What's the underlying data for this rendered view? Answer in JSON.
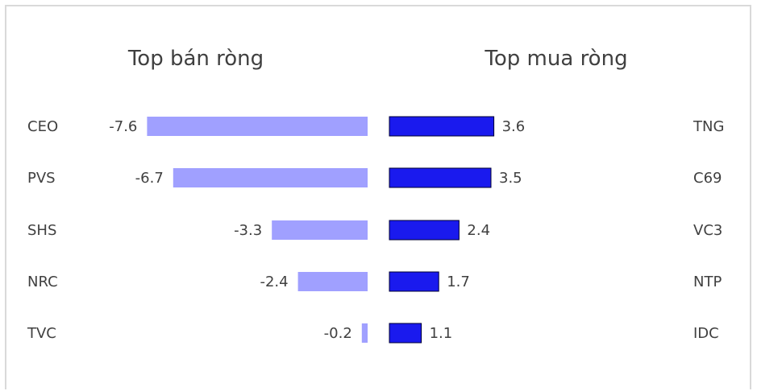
{
  "chart_data": [
    {
      "type": "bar",
      "orientation": "horizontal",
      "title": "Top bán ròng",
      "categories": [
        "CEO",
        "PVS",
        "SHS",
        "NRC",
        "TVC"
      ],
      "values": [
        -7.6,
        -6.7,
        -3.3,
        -2.4,
        -0.2
      ],
      "value_labels": [
        "-7.6",
        "-6.7",
        "-3.3",
        "-2.4",
        "-0.2"
      ],
      "color": "#a0a0ff"
    },
    {
      "type": "bar",
      "orientation": "horizontal",
      "title": "Top mua ròng",
      "categories": [
        "TNG",
        "C69",
        "VC3",
        "NTP",
        "IDC"
      ],
      "values": [
        3.6,
        3.5,
        2.4,
        1.7,
        1.1
      ],
      "value_labels": [
        "3.6",
        "3.5",
        "2.4",
        "1.7",
        "1.1"
      ],
      "color": "#1a1aee"
    }
  ]
}
